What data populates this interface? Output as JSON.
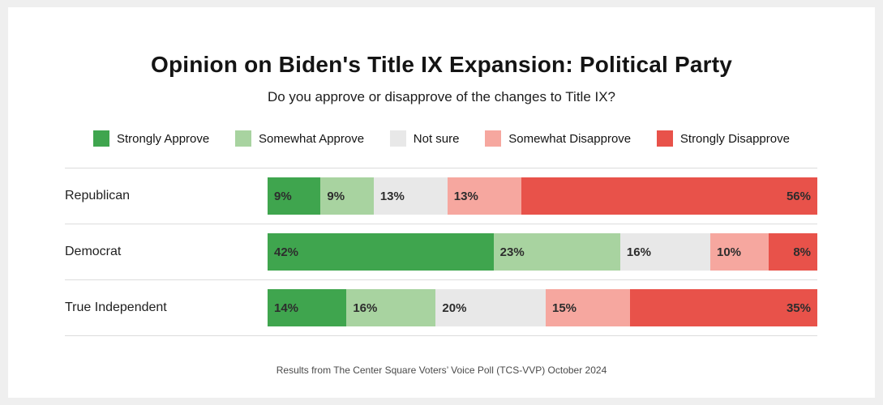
{
  "page": {
    "title": "Opinion on Biden's Title IX Expansion: Political Party",
    "subtitle": "Do you approve or disapprove of the changes to Title IX?",
    "footer": "Results from The Center Square Voters’ Voice Poll (TCS-VVP) October 2024"
  },
  "chart_data": {
    "type": "bar",
    "orientation": "horizontal",
    "stacked": true,
    "unit": "%",
    "title": "Opinion on Biden's Title IX Expansion: Political Party",
    "subtitle": "Do you approve or disapprove of the changes to Title IX?",
    "source": "Results from The Center Square Voters’ Voice Poll (TCS-VVP) October 2024",
    "legend_position": "top",
    "value_labels": true,
    "xlim": [
      0,
      100
    ],
    "categories": [
      "Republican",
      "Democrat",
      "True Independent"
    ],
    "series": [
      {
        "name": "Strongly Approve",
        "color": "#3fa54e",
        "values": [
          9,
          42,
          14
        ]
      },
      {
        "name": "Somewhat Approve",
        "color": "#a8d3a0",
        "values": [
          9,
          23,
          16
        ]
      },
      {
        "name": "Not sure",
        "color": "#e8e8e8",
        "values": [
          13,
          16,
          20
        ]
      },
      {
        "name": "Somewhat Disapprove",
        "color": "#f6a79f",
        "values": [
          13,
          10,
          15
        ]
      },
      {
        "name": "Strongly Disapprove",
        "color": "#e8524a",
        "values": [
          56,
          8,
          35
        ]
      }
    ]
  }
}
